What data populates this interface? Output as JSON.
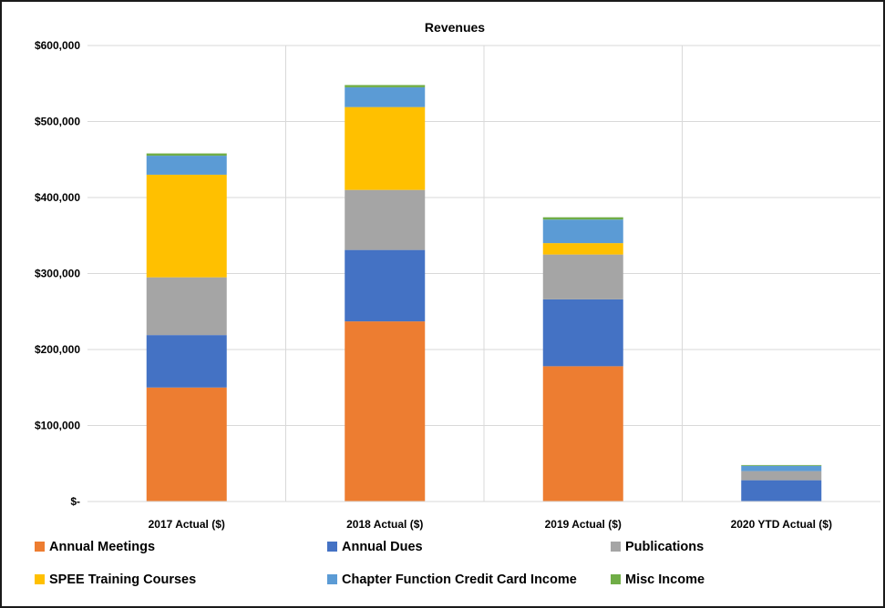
{
  "chart_data": {
    "type": "bar",
    "stacked": true,
    "title": "Revenues",
    "xlabel": "",
    "ylabel": "",
    "categories": [
      "2017 Actual ($)",
      "2018 Actual ($)",
      "2019 Actual ($)",
      "2020 YTD Actual ($)"
    ],
    "ylim": [
      0,
      600000
    ],
    "yticks": [
      0,
      100000,
      200000,
      300000,
      400000,
      500000,
      600000
    ],
    "ytick_labels": [
      "$-",
      "$100,000",
      "$200,000",
      "$300,000",
      "$400,000",
      "$500,000",
      "$600,000"
    ],
    "grid": "on",
    "legend_position": "bottom",
    "series": [
      {
        "name": "Annual Meetings",
        "color": "#ED7D31",
        "values": [
          150000,
          237000,
          178000,
          0
        ]
      },
      {
        "name": "Annual Dues",
        "color": "#4472C4",
        "values": [
          69000,
          94000,
          88000,
          28000
        ]
      },
      {
        "name": "Publications",
        "color": "#A5A5A5",
        "values": [
          76000,
          79000,
          59000,
          12000
        ]
      },
      {
        "name": "SPEE Training Courses",
        "color": "#FFC000",
        "values": [
          135000,
          109000,
          15000,
          0
        ]
      },
      {
        "name": "Chapter Function Credit Card Income",
        "color": "#5B9BD5",
        "values": [
          25000,
          26000,
          31000,
          7000
        ]
      },
      {
        "name": "Misc Income",
        "color": "#70AD47",
        "values": [
          3000,
          3000,
          3000,
          1000
        ]
      }
    ]
  }
}
